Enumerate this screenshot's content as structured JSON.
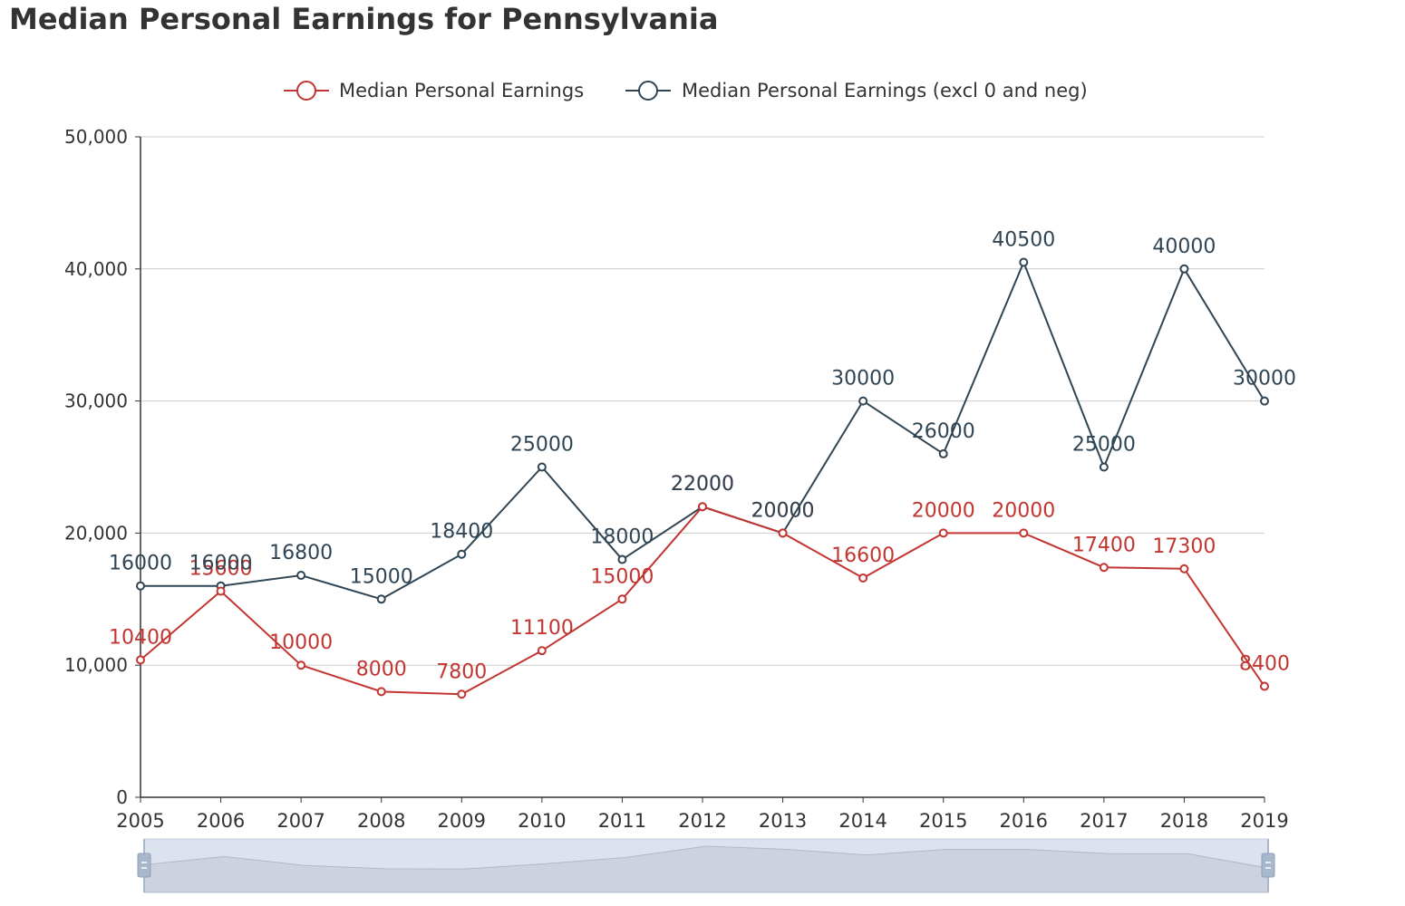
{
  "title": "Median Personal Earnings for Pennsylvania",
  "chart_data": {
    "type": "line",
    "title": "Median Personal Earnings for Pennsylvania",
    "x": [
      2005,
      2006,
      2007,
      2008,
      2009,
      2010,
      2011,
      2012,
      2013,
      2014,
      2015,
      2016,
      2017,
      2018,
      2019
    ],
    "x_tick_labels": [
      "2005",
      "2006",
      "2007",
      "2008",
      "2009",
      "2010",
      "2011",
      "2012",
      "2013",
      "2014",
      "2015",
      "2016",
      "2017",
      "2018",
      "2019"
    ],
    "y_tick_labels": [
      "0",
      "10,000",
      "20,000",
      "30,000",
      "40,000",
      "50,000"
    ],
    "ylim": [
      0,
      50000
    ],
    "grid": true,
    "legend_position": "top-center",
    "series": [
      {
        "name": "Median Personal Earnings",
        "color": "#c23531",
        "values": [
          10400,
          15600,
          10000,
          8000,
          7800,
          11100,
          15000,
          22000,
          20000,
          16600,
          20000,
          20000,
          17400,
          17300,
          8400
        ]
      },
      {
        "name": "Median Personal Earnings (excl 0 and neg)",
        "color": "#2f4554",
        "values": [
          16000,
          16000,
          16800,
          15000,
          18400,
          25000,
          18000,
          22000,
          20000,
          30000,
          26000,
          40500,
          25000,
          40000,
          30000
        ]
      }
    ],
    "data_zoom": {
      "range_percent": [
        0,
        100
      ]
    }
  }
}
